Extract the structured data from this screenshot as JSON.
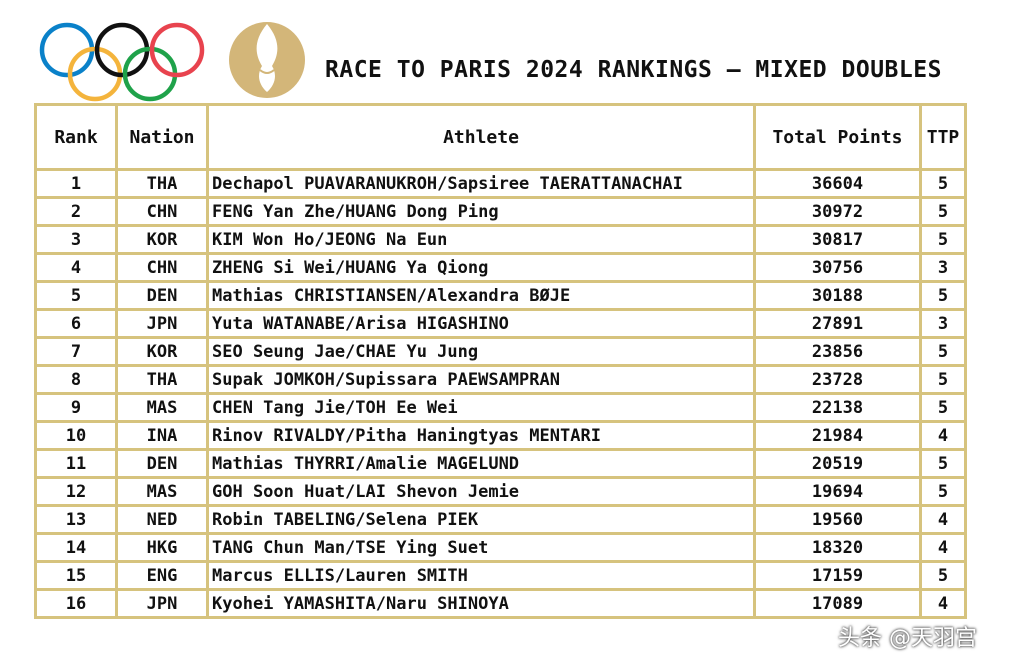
{
  "header": {
    "title": "RACE TO PARIS 2024 RANKINGS – MIXED DOUBLES"
  },
  "table": {
    "columns": [
      "Rank",
      "Nation",
      "Athlete",
      "Total Points",
      "TTP"
    ],
    "rows": [
      [
        "1",
        "THA",
        "Dechapol PUAVARANUKROH/Sapsiree TAERATTANACHAI",
        "36604",
        "5"
      ],
      [
        "2",
        "CHN",
        "FENG Yan Zhe/HUANG Dong Ping",
        "30972",
        "5"
      ],
      [
        "3",
        "KOR",
        "KIM Won Ho/JEONG Na Eun",
        "30817",
        "5"
      ],
      [
        "4",
        "CHN",
        "ZHENG Si Wei/HUANG Ya Qiong",
        "30756",
        "3"
      ],
      [
        "5",
        "DEN",
        "Mathias CHRISTIANSEN/Alexandra BØJE",
        "30188",
        "5"
      ],
      [
        "6",
        "JPN",
        "Yuta WATANABE/Arisa HIGASHINO",
        "27891",
        "3"
      ],
      [
        "7",
        "KOR",
        "SEO Seung Jae/CHAE Yu Jung",
        "23856",
        "5"
      ],
      [
        "8",
        "THA",
        "Supak JOMKOH/Supissara PAEWSAMPRAN",
        "23728",
        "5"
      ],
      [
        "9",
        "MAS",
        "CHEN Tang Jie/TOH Ee Wei",
        "22138",
        "5"
      ],
      [
        "10",
        "INA",
        "Rinov RIVALDY/Pitha Haningtyas MENTARI",
        "21984",
        "4"
      ],
      [
        "11",
        "DEN",
        "Mathias THYRRI/Amalie MAGELUND",
        "20519",
        "5"
      ],
      [
        "12",
        "MAS",
        "GOH Soon Huat/LAI Shevon Jemie",
        "19694",
        "5"
      ],
      [
        "13",
        "NED",
        "Robin TABELING/Selena PIEK",
        "19560",
        "4"
      ],
      [
        "14",
        "HKG",
        "TANG Chun Man/TSE Ying Suet",
        "18320",
        "4"
      ],
      [
        "15",
        "ENG",
        "Marcus ELLIS/Lauren SMITH",
        "17159",
        "5"
      ],
      [
        "16",
        "JPN",
        "Kyohei YAMASHITA/Naru SHINOYA",
        "17089",
        "4"
      ]
    ]
  },
  "watermark": "头条 @天羽宫"
}
